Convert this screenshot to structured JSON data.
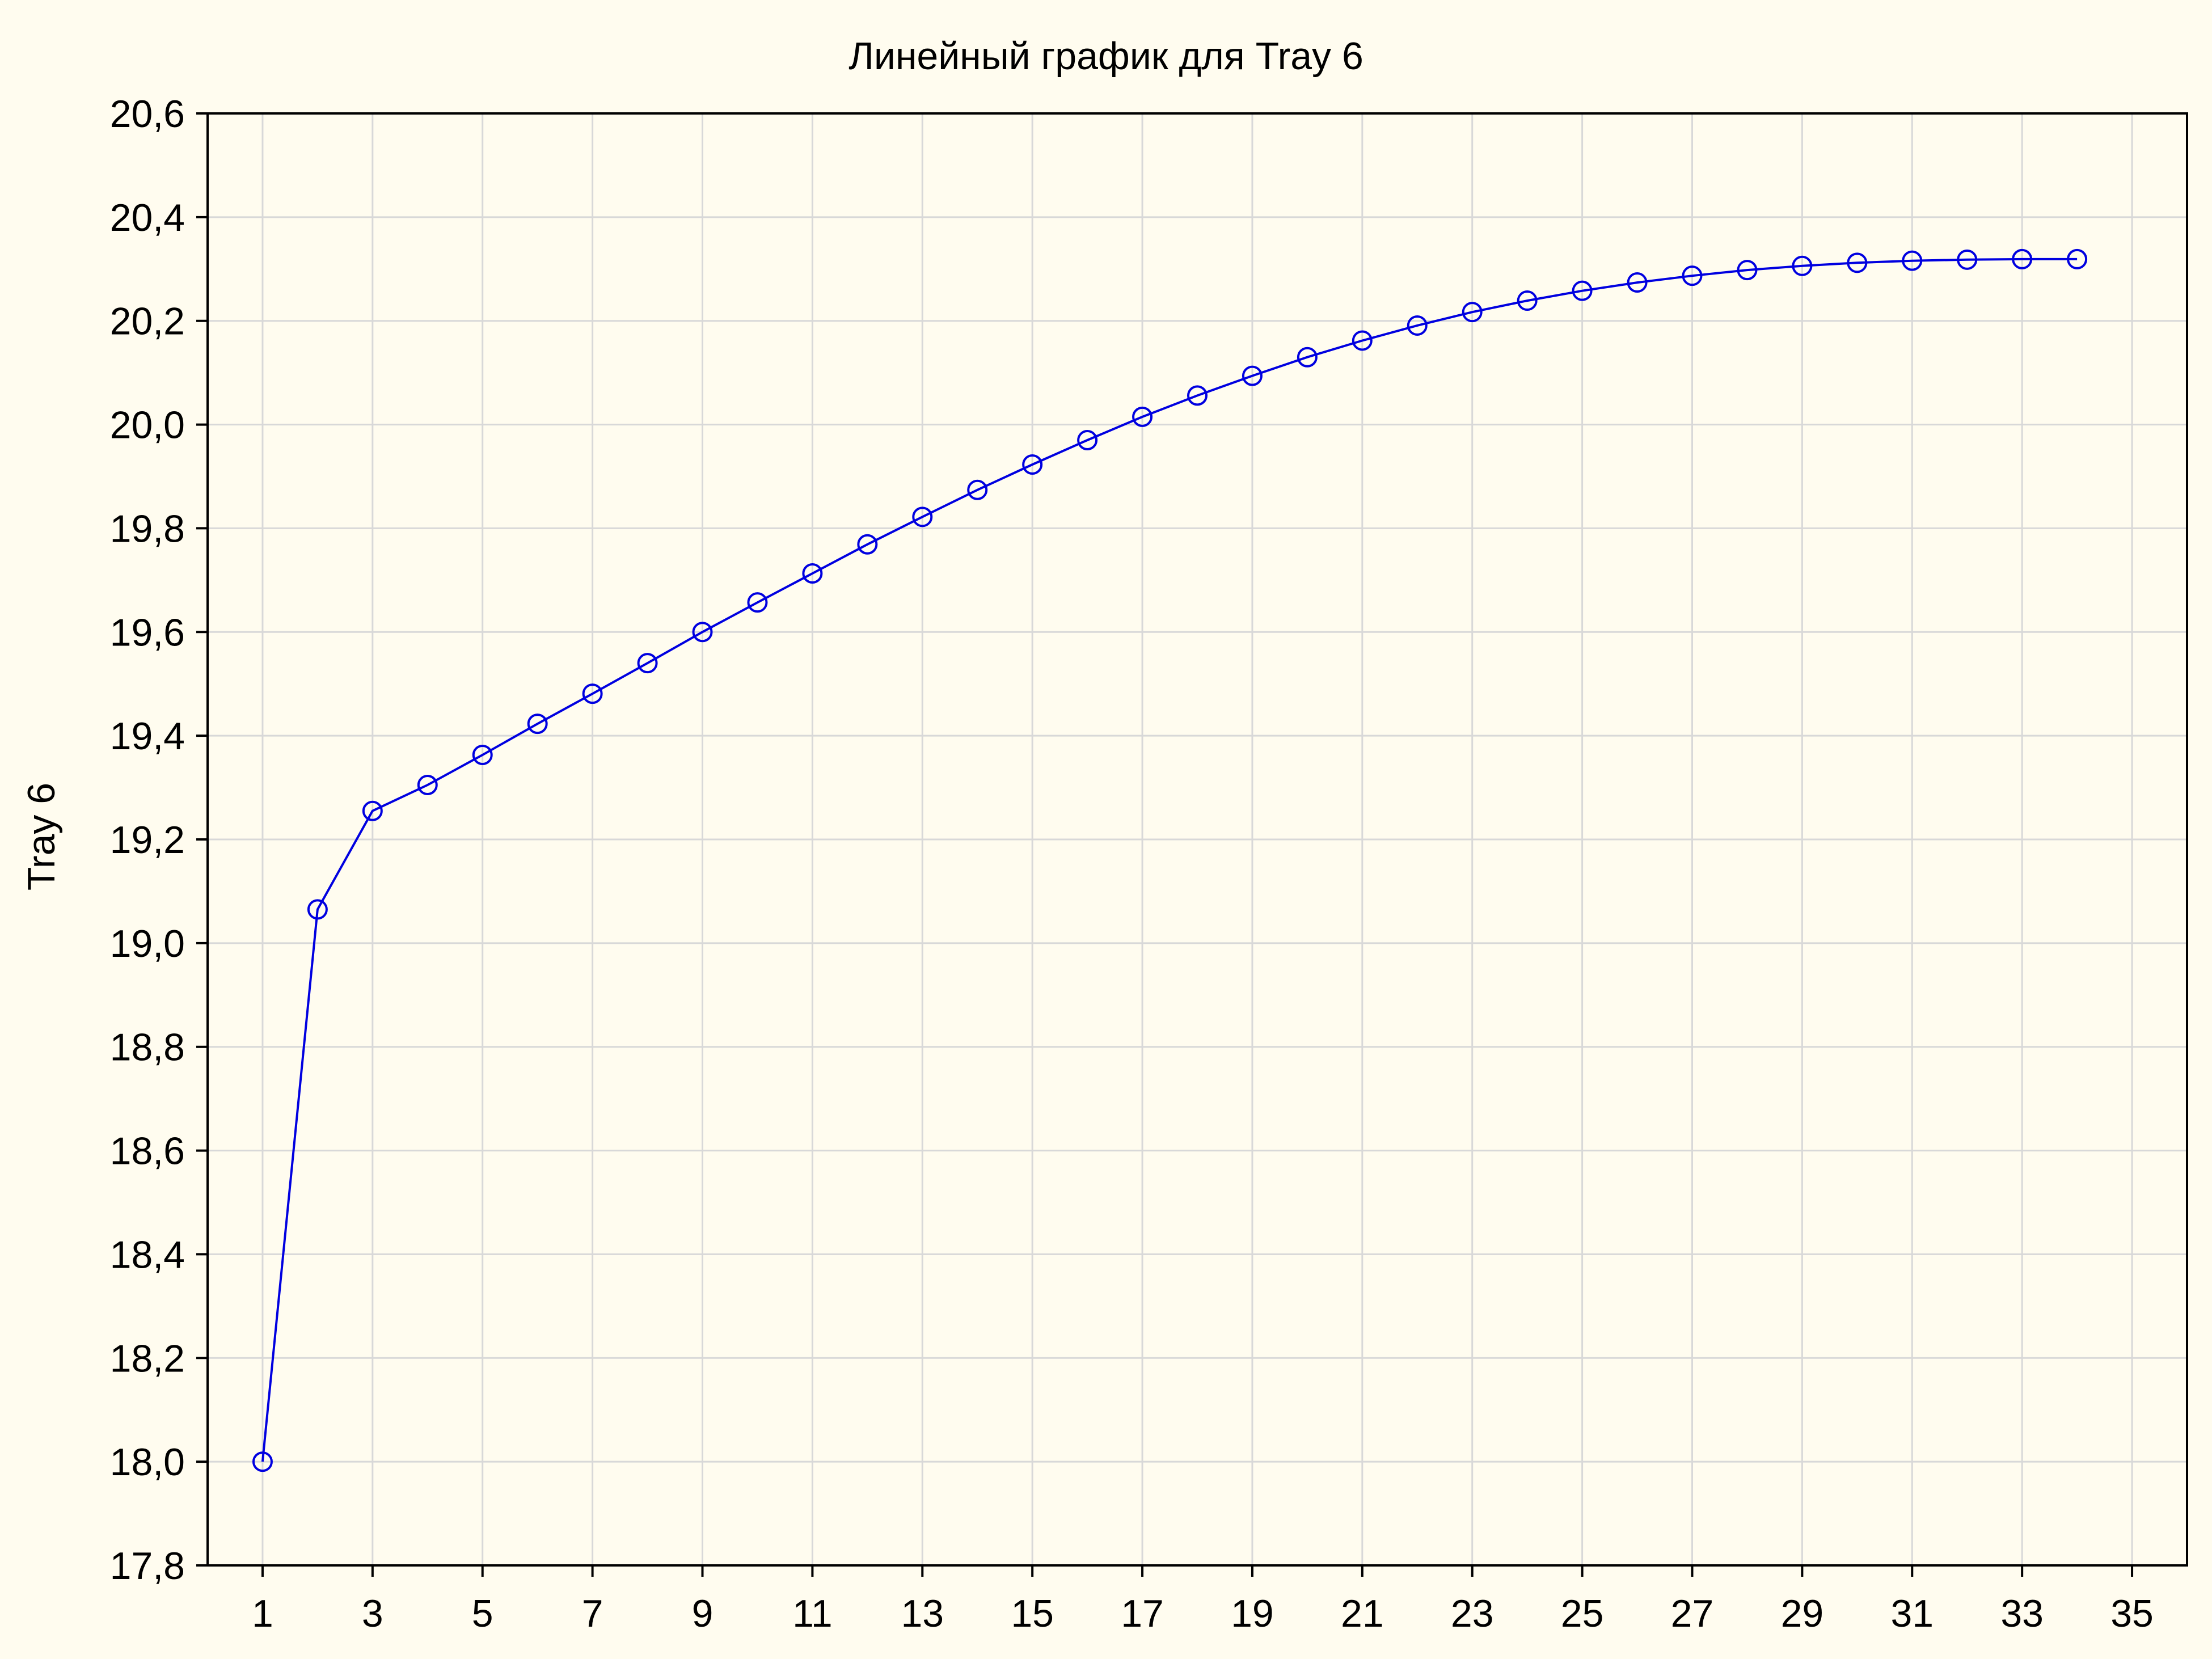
{
  "chart_data": {
    "type": "line",
    "title": "Линейный график для Tray 6",
    "xlabel": "",
    "ylabel": "Tray 6",
    "xlim": [
      0,
      36
    ],
    "ylim": [
      17.8,
      20.6
    ],
    "x_ticks": [
      1,
      3,
      5,
      7,
      9,
      11,
      13,
      15,
      17,
      19,
      21,
      23,
      25,
      27,
      29,
      31,
      33,
      35
    ],
    "y_ticks": [
      "17,8",
      "18,0",
      "18,2",
      "18,4",
      "18,6",
      "18,8",
      "19,0",
      "19,2",
      "19,4",
      "19,6",
      "19,8",
      "20,0",
      "20,2",
      "20,4",
      "20,6"
    ],
    "y_tick_values": [
      17.8,
      18.0,
      18.2,
      18.4,
      18.6,
      18.8,
      19.0,
      19.2,
      19.4,
      19.6,
      19.8,
      20.0,
      20.2,
      20.4,
      20.6
    ],
    "grid": true,
    "series_color": "#0000e0",
    "x": [
      1,
      2,
      3,
      4,
      5,
      6,
      7,
      8,
      9,
      10,
      11,
      12,
      13,
      14,
      15,
      16,
      17,
      18,
      19,
      20,
      21,
      22,
      23,
      24,
      25,
      26,
      27,
      28,
      29,
      30,
      31,
      32,
      33,
      34
    ],
    "y": [
      18.0,
      19.065,
      19.255,
      19.305,
      19.363,
      19.423,
      19.481,
      19.54,
      19.6,
      19.657,
      19.713,
      19.769,
      19.822,
      19.874,
      19.923,
      19.97,
      20.015,
      20.056,
      20.094,
      20.13,
      20.162,
      20.191,
      20.217,
      20.239,
      20.258,
      20.274,
      20.287,
      20.298,
      20.306,
      20.312,
      20.316,
      20.318,
      20.319,
      20.319
    ]
  }
}
